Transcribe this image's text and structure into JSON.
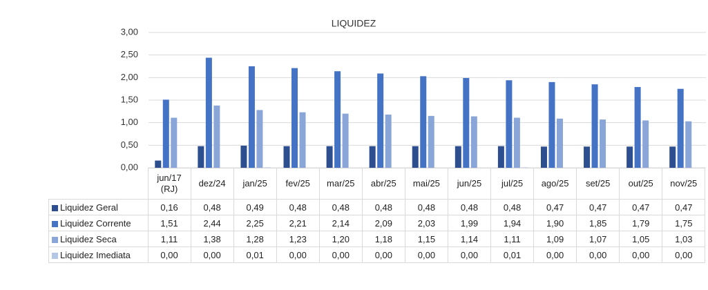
{
  "chart_data": {
    "type": "bar",
    "title": "LIQUIDEZ",
    "categories": [
      "jun/17 (RJ)",
      "dez/24",
      "jan/25",
      "fev/25",
      "mar/25",
      "abr/25",
      "mai/25",
      "jun/25",
      "jul/25",
      "ago/25",
      "set/25",
      "out/25",
      "nov/25"
    ],
    "series": [
      {
        "name": "Liquidez Geral",
        "color": "#2e4f8f",
        "values": [
          0.16,
          0.48,
          0.49,
          0.48,
          0.48,
          0.48,
          0.48,
          0.48,
          0.48,
          0.47,
          0.47,
          0.47,
          0.47
        ],
        "value_labels": [
          "0,16",
          "0,48",
          "0,49",
          "0,48",
          "0,48",
          "0,48",
          "0,48",
          "0,48",
          "0,48",
          "0,47",
          "0,47",
          "0,47",
          "0,47"
        ]
      },
      {
        "name": "Liquidez Corrente",
        "color": "#4472c4",
        "values": [
          1.51,
          2.44,
          2.25,
          2.21,
          2.14,
          2.09,
          2.03,
          1.99,
          1.94,
          1.9,
          1.85,
          1.79,
          1.75
        ],
        "value_labels": [
          "1,51",
          "2,44",
          "2,25",
          "2,21",
          "2,14",
          "2,09",
          "2,03",
          "1,99",
          "1,94",
          "1,90",
          "1,85",
          "1,79",
          "1,75"
        ]
      },
      {
        "name": "Liquidez Seca",
        "color": "#8aa6d9",
        "values": [
          1.11,
          1.38,
          1.28,
          1.23,
          1.2,
          1.18,
          1.15,
          1.14,
          1.11,
          1.09,
          1.07,
          1.05,
          1.03
        ],
        "value_labels": [
          "1,11",
          "1,38",
          "1,28",
          "1,23",
          "1,20",
          "1,18",
          "1,15",
          "1,14",
          "1,11",
          "1,09",
          "1,07",
          "1,05",
          "1,03"
        ]
      },
      {
        "name": "Liquidez Imediata",
        "color": "#b4c7e7",
        "values": [
          0.0,
          0.0,
          0.01,
          0.0,
          0.0,
          0.0,
          0.0,
          0.0,
          0.01,
          0.0,
          0.0,
          0.0,
          0.0
        ],
        "value_labels": [
          "0,00",
          "0,00",
          "0,01",
          "0,00",
          "0,00",
          "0,00",
          "0,00",
          "0,00",
          "0,01",
          "0,00",
          "0,00",
          "0,00",
          "0,00"
        ]
      }
    ],
    "ylim": [
      0,
      3
    ],
    "yticks": [
      {
        "value": 0,
        "label": "0,00"
      },
      {
        "value": 0.5,
        "label": "0,50"
      },
      {
        "value": 1,
        "label": "1,00"
      },
      {
        "value": 1.5,
        "label": "1,50"
      },
      {
        "value": 2,
        "label": "2,00"
      },
      {
        "value": 2.5,
        "label": "2,50"
      },
      {
        "value": 3,
        "label": "3,00"
      }
    ],
    "grid": true
  }
}
